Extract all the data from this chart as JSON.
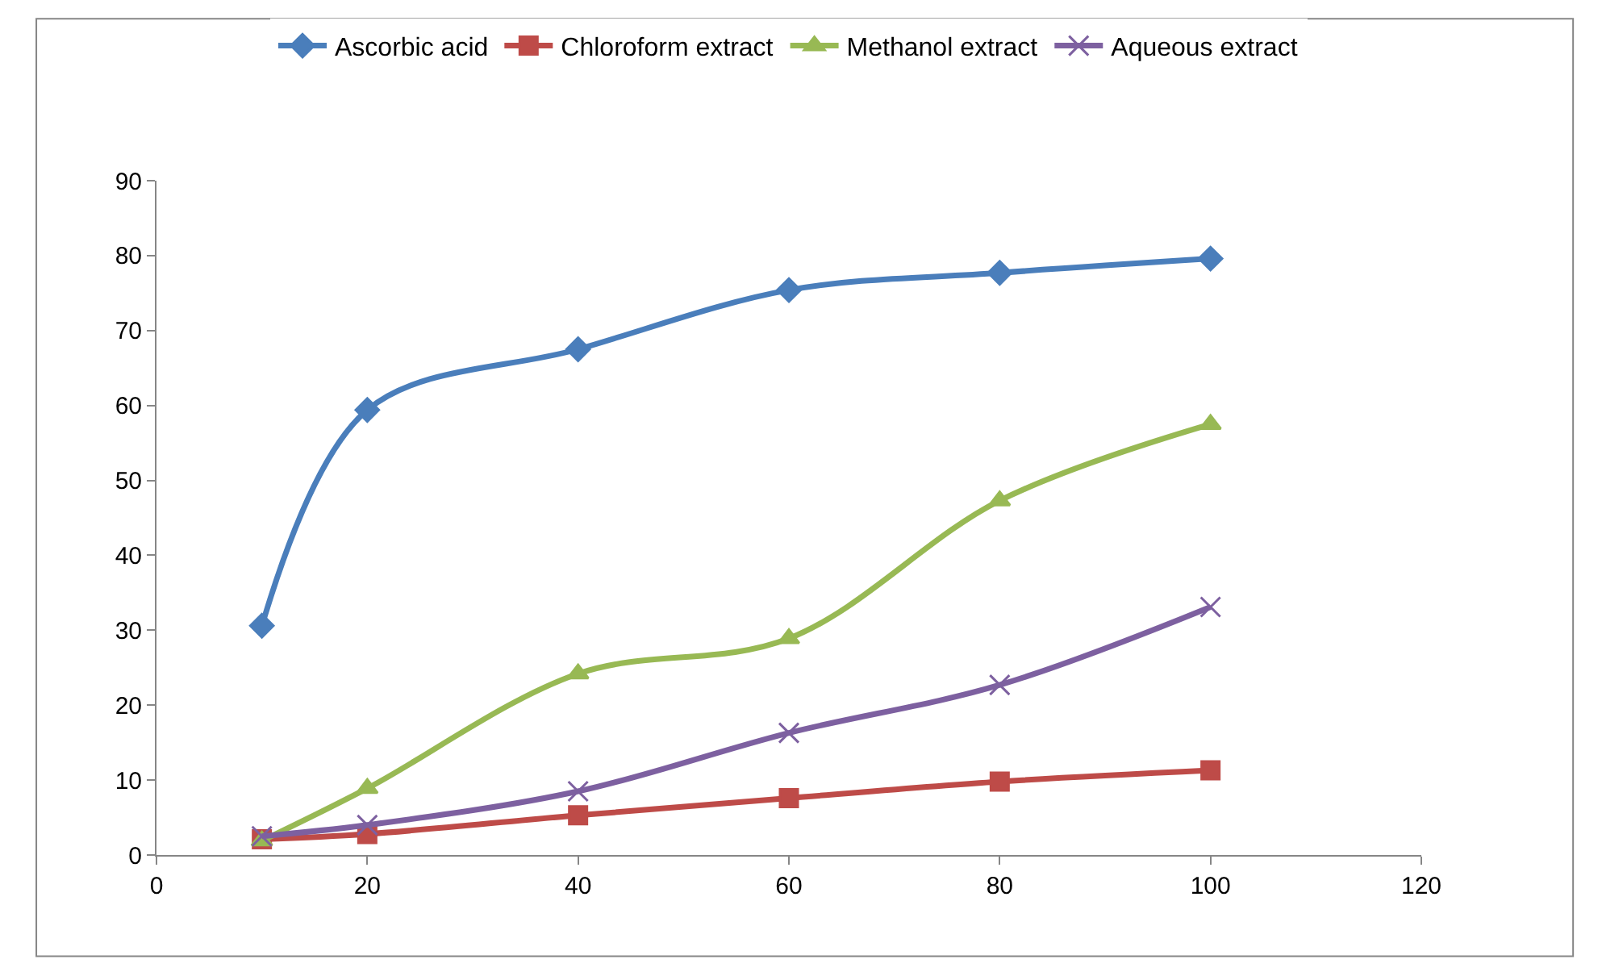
{
  "chart_data": {
    "type": "line",
    "x": [
      10,
      20,
      40,
      60,
      80,
      100
    ],
    "series": [
      {
        "name": "Ascorbic acid",
        "color": "#4a7ebb",
        "marker": "diamond",
        "values": [
          30.6,
          59.4,
          67.5,
          75.4,
          77.7,
          79.6
        ]
      },
      {
        "name": "Chloroform extract",
        "color": "#be4b48",
        "marker": "square",
        "values": [
          2.1,
          2.8,
          5.3,
          7.6,
          9.8,
          11.3
        ]
      },
      {
        "name": "Methanol extract",
        "color": "#98b954",
        "marker": "triangle",
        "values": [
          1.9,
          8.9,
          24.2,
          28.9,
          47.3,
          57.5
        ]
      },
      {
        "name": "Aqueous extract",
        "color": "#7d60a0",
        "marker": "cross",
        "values": [
          2.5,
          4.0,
          8.5,
          16.3,
          22.7,
          33.1
        ]
      }
    ],
    "xlim": [
      0,
      120
    ],
    "xticks": [
      0,
      20,
      40,
      60,
      80,
      100,
      120
    ],
    "ylim": [
      0,
      90
    ],
    "yticks": [
      0,
      10,
      20,
      30,
      40,
      50,
      60,
      70,
      80,
      90
    ],
    "legend": "top",
    "line_style": "solid"
  }
}
